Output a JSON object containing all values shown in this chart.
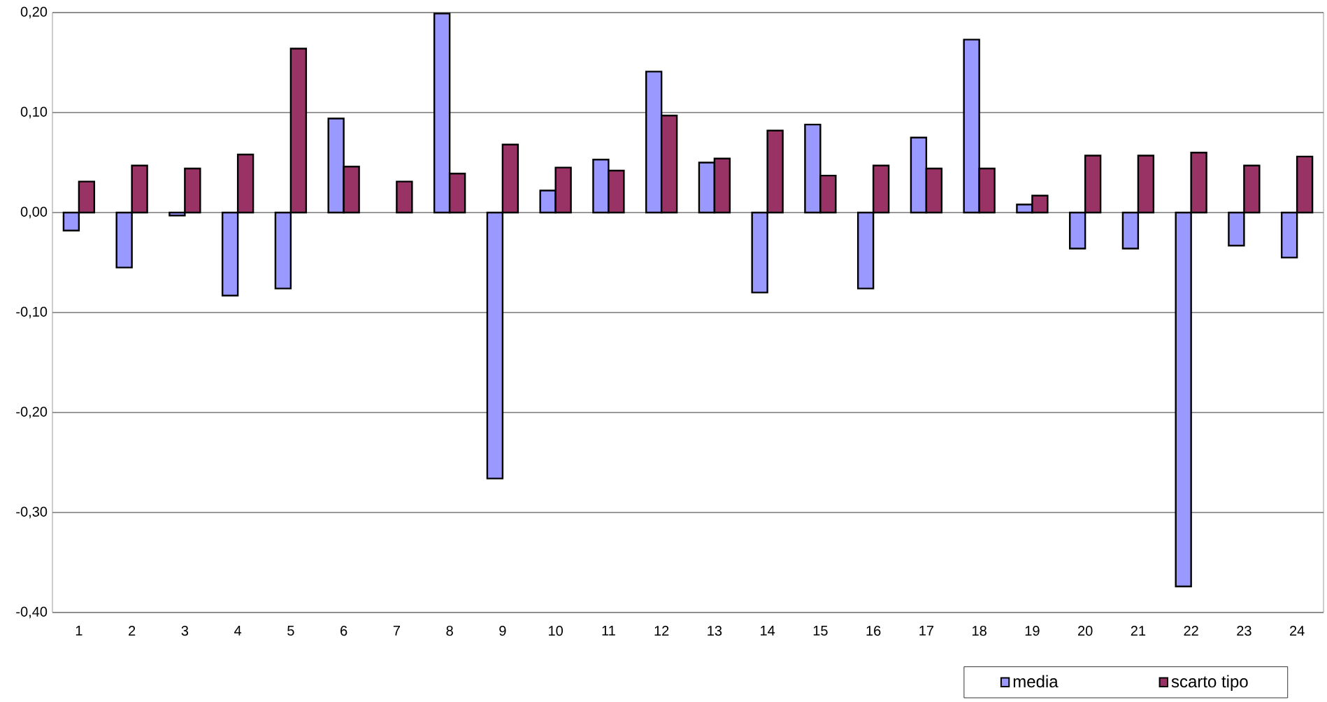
{
  "chart_data": {
    "type": "bar",
    "categories": [
      "1",
      "2",
      "3",
      "4",
      "5",
      "6",
      "7",
      "8",
      "9",
      "10",
      "11",
      "12",
      "13",
      "14",
      "15",
      "16",
      "17",
      "18",
      "19",
      "20",
      "21",
      "22",
      "23",
      "24"
    ],
    "series": [
      {
        "name": "media",
        "color": "#9999ff",
        "values": [
          -0.018,
          -0.055,
          -0.003,
          -0.083,
          -0.076,
          0.094,
          null,
          0.199,
          -0.266,
          0.022,
          0.053,
          0.141,
          0.05,
          -0.08,
          0.088,
          -0.076,
          0.075,
          0.173,
          0.008,
          -0.036,
          -0.036,
          -0.374,
          -0.033,
          -0.045
        ]
      },
      {
        "name": "scarto tipo",
        "color": "#993366",
        "values": [
          0.031,
          0.047,
          0.044,
          0.058,
          0.164,
          0.046,
          0.031,
          0.039,
          0.068,
          0.045,
          0.042,
          0.097,
          0.054,
          0.082,
          0.037,
          0.047,
          0.044,
          0.044,
          0.017,
          0.057,
          0.057,
          0.06,
          0.047,
          0.056
        ]
      }
    ],
    "ylim": [
      -0.4,
      0.2
    ],
    "yticks": [
      {
        "value": -0.4,
        "label": "-0,40"
      },
      {
        "value": -0.3,
        "label": "-0,30"
      },
      {
        "value": -0.2,
        "label": "-0,20"
      },
      {
        "value": -0.1,
        "label": "-0,10"
      },
      {
        "value": 0,
        "label": "0,00"
      },
      {
        "value": 0.1,
        "label": "0,10"
      },
      {
        "value": 0.2,
        "label": "0,20"
      }
    ],
    "grid": "y",
    "legend": "bottom right"
  }
}
